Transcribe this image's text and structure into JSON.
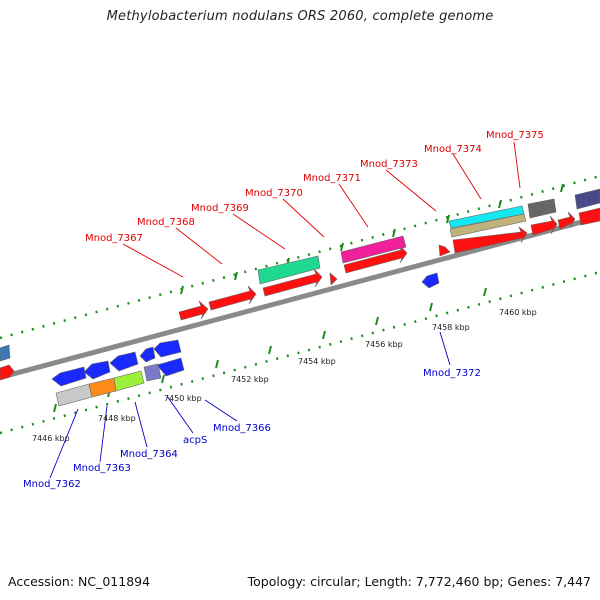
{
  "title": "Methylobacterium nodulans ORS 2060, complete genome",
  "footer": {
    "accession": "Accession: NC_011894",
    "topology": "Topology: circular; Length: 7,772,460 bp; Genes: 7,447"
  },
  "colors": {
    "backbone": "#8a8a8a",
    "tick_dots": "#1e8c1e",
    "label_forward": "#e00000",
    "label_reverse": "#0000c8"
  },
  "scale_labels": [
    "7446 kbp",
    "7448 kbp",
    "7450 kbp",
    "7452 kbp",
    "7454 kbp",
    "7456 kbp",
    "7458 kbp",
    "7460 kbp"
  ],
  "upper_labels": [
    "Mnod_7367",
    "Mnod_7368",
    "Mnod_7369",
    "Mnod_7370",
    "Mnod_7371",
    "Mnod_7373",
    "Mnod_7374",
    "Mnod_7375"
  ],
  "lower_labels": [
    "Mnod_7362",
    "Mnod_7363",
    "Mnod_7364",
    "acpS",
    "Mnod_7366",
    "Mnod_7372"
  ]
}
